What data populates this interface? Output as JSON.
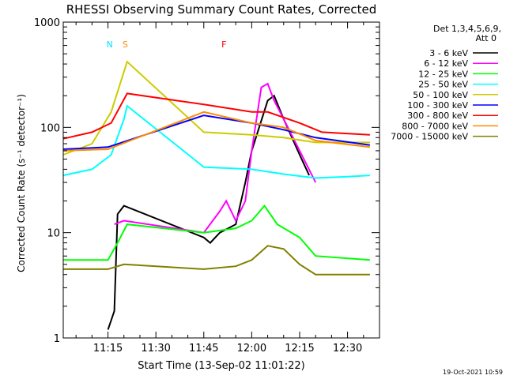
{
  "chart_data": {
    "type": "line",
    "title": "RHESSI Observing Summary Count Rates, Corrected",
    "xlabel": "Start Time (13-Sep-02 11:01:22)",
    "ylabel": "Corrected Count Rate (s⁻¹ detector⁻¹)",
    "y_scale": "log",
    "ylim": [
      1,
      1000
    ],
    "xlim": [
      "11:01",
      "12:40"
    ],
    "x_ticks": [
      "11:15",
      "11:30",
      "11:45",
      "12:00",
      "12:15",
      "12:30"
    ],
    "y_ticks": [
      "1",
      "10",
      "100",
      "1000"
    ],
    "legend_header": [
      "Det 1,3,4,5,6,9,",
      "Att 0"
    ],
    "legend_position": "right",
    "timestamp": "19-Oct-2021 10:59",
    "flags": [
      {
        "label": "N",
        "color": "#00e6ff"
      },
      {
        "label": "S",
        "color": "#ff8c00"
      },
      {
        "label": "F",
        "color": "#ff0000"
      }
    ],
    "series": [
      {
        "name": "3 - 6 keV",
        "color": "#000000",
        "points": [
          [
            "11:15",
            1.2
          ],
          [
            "11:17",
            1.8
          ],
          [
            "11:18",
            15
          ],
          [
            "11:20",
            18
          ],
          [
            "11:45",
            9
          ],
          [
            "11:47",
            8
          ],
          [
            "11:50",
            10
          ],
          [
            "11:55",
            12
          ],
          [
            "11:58",
            30
          ],
          [
            "12:00",
            60
          ],
          [
            "12:05",
            180
          ],
          [
            "12:07",
            200
          ],
          [
            "12:10",
            120
          ],
          [
            "12:15",
            55
          ],
          [
            "12:18",
            35
          ]
        ]
      },
      {
        "name": "6 - 12 keV",
        "color": "#ff00ff",
        "points": [
          [
            "11:17",
            12
          ],
          [
            "11:20",
            13
          ],
          [
            "11:45",
            10
          ],
          [
            "11:50",
            16
          ],
          [
            "11:52",
            20
          ],
          [
            "11:55",
            13
          ],
          [
            "11:58",
            20
          ],
          [
            "12:00",
            60
          ],
          [
            "12:03",
            240
          ],
          [
            "12:05",
            260
          ],
          [
            "12:07",
            180
          ],
          [
            "12:10",
            120
          ],
          [
            "12:15",
            60
          ],
          [
            "12:20",
            30
          ]
        ]
      },
      {
        "name": "12 - 25 keV",
        "color": "#00ff00",
        "points": [
          [
            "11:01",
            5.5
          ],
          [
            "11:15",
            5.5
          ],
          [
            "11:18",
            8
          ],
          [
            "11:21",
            12
          ],
          [
            "11:45",
            10
          ],
          [
            "11:55",
            11
          ],
          [
            "12:00",
            13
          ],
          [
            "12:04",
            18
          ],
          [
            "12:08",
            12
          ],
          [
            "12:15",
            9
          ],
          [
            "12:20",
            6
          ],
          [
            "12:37",
            5.5
          ]
        ]
      },
      {
        "name": "25 - 50 keV",
        "color": "#00ffff",
        "points": [
          [
            "11:01",
            35
          ],
          [
            "11:10",
            40
          ],
          [
            "11:16",
            55
          ],
          [
            "11:20",
            120
          ],
          [
            "11:21",
            160
          ],
          [
            "11:45",
            42
          ],
          [
            "12:00",
            40
          ],
          [
            "12:10",
            36
          ],
          [
            "12:20",
            33
          ],
          [
            "12:30",
            34
          ],
          [
            "12:37",
            35
          ]
        ]
      },
      {
        "name": "50 - 100 keV",
        "color": "#cccc00",
        "points": [
          [
            "11:01",
            55
          ],
          [
            "11:10",
            70
          ],
          [
            "11:16",
            140
          ],
          [
            "11:21",
            420
          ],
          [
            "11:45",
            90
          ],
          [
            "12:00",
            85
          ],
          [
            "12:10",
            80
          ],
          [
            "12:20",
            72
          ],
          [
            "12:37",
            72
          ]
        ]
      },
      {
        "name": "100 - 300 keV",
        "color": "#0000ff",
        "points": [
          [
            "11:01",
            62
          ],
          [
            "11:15",
            65
          ],
          [
            "11:45",
            130
          ],
          [
            "12:00",
            110
          ],
          [
            "12:10",
            95
          ],
          [
            "12:20",
            80
          ],
          [
            "12:37",
            68
          ]
        ]
      },
      {
        "name": "300 - 800 keV",
        "color": "#ff0000",
        "points": [
          [
            "11:01",
            78
          ],
          [
            "11:10",
            90
          ],
          [
            "11:16",
            110
          ],
          [
            "11:21",
            210
          ],
          [
            "11:45",
            165
          ],
          [
            "12:00",
            140
          ],
          [
            "12:05",
            140
          ],
          [
            "12:15",
            110
          ],
          [
            "12:22",
            90
          ],
          [
            "12:37",
            85
          ]
        ]
      },
      {
        "name": "800 - 7000 keV",
        "color": "#ff8c00",
        "points": [
          [
            "11:01",
            60
          ],
          [
            "11:15",
            62
          ],
          [
            "11:45",
            140
          ],
          [
            "12:00",
            110
          ],
          [
            "12:10",
            100
          ],
          [
            "12:20",
            75
          ],
          [
            "12:37",
            65
          ]
        ]
      },
      {
        "name": "7000 - 15000 keV",
        "color": "#808000",
        "points": [
          [
            "11:01",
            4.5
          ],
          [
            "11:15",
            4.5
          ],
          [
            "11:20",
            5
          ],
          [
            "11:45",
            4.5
          ],
          [
            "11:55",
            4.8
          ],
          [
            "12:00",
            5.5
          ],
          [
            "12:05",
            7.5
          ],
          [
            "12:10",
            7
          ],
          [
            "12:15",
            5
          ],
          [
            "12:20",
            4
          ],
          [
            "12:37",
            4
          ]
        ]
      }
    ]
  }
}
